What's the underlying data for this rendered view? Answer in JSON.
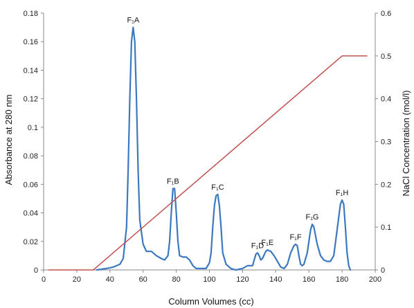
{
  "chart_data": {
    "type": "line",
    "xlabel": "Column Volumes (cc)",
    "ylabel_left": "Absorbance  at 280 nm",
    "ylabel_right": "NaCl Concentration (mol/l)",
    "xlim": [
      0,
      200
    ],
    "ylim_left": [
      0,
      0.18
    ],
    "ylim_right": [
      0,
      0.6
    ],
    "x_ticks": [
      "0",
      "20",
      "40",
      "60",
      "80",
      "100",
      "120",
      "140",
      "160",
      "180",
      "200"
    ],
    "y_ticks_left": [
      "0",
      "0.02",
      "0.04",
      "0.06",
      "0.08",
      "0.1",
      "0.12",
      "0.14",
      "0.16",
      "0.18"
    ],
    "y_ticks_right": [
      "0",
      "0.1",
      "0.2",
      "0.3",
      "0.4",
      "0.5",
      "0.6"
    ],
    "grid": false,
    "series": [
      {
        "axis": "left",
        "color": "#3a78c0",
        "points": [
          [
            32,
            0
          ],
          [
            38,
            0.001
          ],
          [
            42,
            0.002
          ],
          [
            46,
            0.004
          ],
          [
            48,
            0.008
          ],
          [
            50,
            0.03
          ],
          [
            51,
            0.07
          ],
          [
            52,
            0.12
          ],
          [
            53,
            0.16
          ],
          [
            54,
            0.17
          ],
          [
            55,
            0.16
          ],
          [
            56,
            0.12
          ],
          [
            57,
            0.07
          ],
          [
            58,
            0.035
          ],
          [
            60,
            0.018
          ],
          [
            62,
            0.013
          ],
          [
            65,
            0.013
          ],
          [
            68,
            0.01
          ],
          [
            71,
            0.008
          ],
          [
            73,
            0.007
          ],
          [
            75,
            0.01
          ],
          [
            76,
            0.02
          ],
          [
            77,
            0.04
          ],
          [
            78,
            0.057
          ],
          [
            79,
            0.057
          ],
          [
            80,
            0.04
          ],
          [
            81,
            0.02
          ],
          [
            82,
            0.01
          ],
          [
            84,
            0.009
          ],
          [
            86,
            0.009
          ],
          [
            88,
            0.007
          ],
          [
            90,
            0.003
          ],
          [
            92,
            0.001
          ],
          [
            94,
            0.001
          ],
          [
            96,
            0.001
          ],
          [
            98,
            0.001
          ],
          [
            100,
            0.005
          ],
          [
            101,
            0.012
          ],
          [
            102,
            0.03
          ],
          [
            103,
            0.045
          ],
          [
            104,
            0.052
          ],
          [
            105,
            0.053
          ],
          [
            106,
            0.045
          ],
          [
            107,
            0.03
          ],
          [
            108,
            0.012
          ],
          [
            110,
            0.004
          ],
          [
            113,
            0.001
          ],
          [
            116,
            0
          ],
          [
            120,
            0.001
          ],
          [
            123,
            0.003
          ],
          [
            126,
            0.003
          ],
          [
            127,
            0.007
          ],
          [
            128,
            0.011
          ],
          [
            129,
            0.012
          ],
          [
            130,
            0.01
          ],
          [
            131,
            0.007
          ],
          [
            132,
            0.008
          ],
          [
            134,
            0.013
          ],
          [
            135,
            0.014
          ],
          [
            137,
            0.013
          ],
          [
            139,
            0.01
          ],
          [
            141,
            0.006
          ],
          [
            143,
            0.002
          ],
          [
            145,
            0.001
          ],
          [
            147,
            0.004
          ],
          [
            149,
            0.012
          ],
          [
            151,
            0.017
          ],
          [
            152,
            0.018
          ],
          [
            153,
            0.017
          ],
          [
            154,
            0.01
          ],
          [
            155,
            0.004
          ],
          [
            156,
            0.003
          ],
          [
            157,
            0.004
          ],
          [
            159,
            0.012
          ],
          [
            161,
            0.028
          ],
          [
            162,
            0.032
          ],
          [
            163,
            0.03
          ],
          [
            165,
            0.018
          ],
          [
            167,
            0.01
          ],
          [
            169,
            0.007
          ],
          [
            171,
            0.006
          ],
          [
            173,
            0.006
          ],
          [
            175,
            0.01
          ],
          [
            177,
            0.028
          ],
          [
            179,
            0.046
          ],
          [
            180,
            0.049
          ],
          [
            181,
            0.046
          ],
          [
            182,
            0.03
          ],
          [
            183,
            0.012
          ],
          [
            184,
            0.003
          ],
          [
            185,
            0
          ]
        ]
      },
      {
        "axis": "right",
        "color": "#c0504d",
        "points": [
          [
            3,
            0
          ],
          [
            30,
            0
          ],
          [
            180,
            0.5
          ],
          [
            195,
            0.5
          ]
        ]
      }
    ],
    "annotations": [
      {
        "label": "F₁A",
        "x": 54,
        "y": 0.17
      },
      {
        "label": "F₁B",
        "x": 78,
        "y": 0.057
      },
      {
        "label": "F₁C",
        "x": 105,
        "y": 0.053
      },
      {
        "label": "F₁D",
        "x": 129,
        "y": 0.012
      },
      {
        "label": "F₁E",
        "x": 135,
        "y": 0.014
      },
      {
        "label": "F₁F",
        "x": 152,
        "y": 0.018
      },
      {
        "label": "F₁G",
        "x": 162,
        "y": 0.032
      },
      {
        "label": "F₁H",
        "x": 180,
        "y": 0.049
      }
    ]
  }
}
